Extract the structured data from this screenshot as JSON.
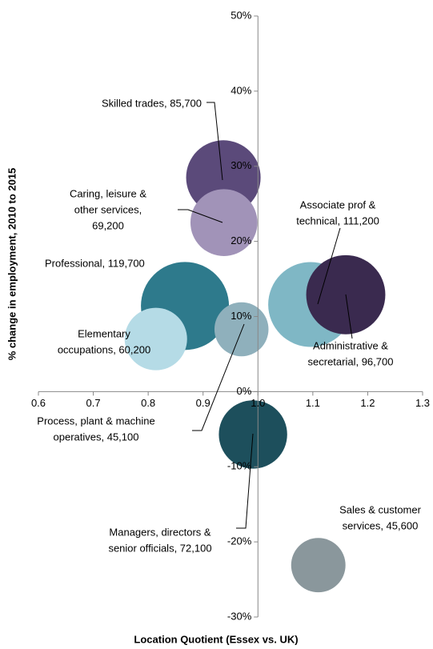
{
  "chart_data": {
    "type": "bubble",
    "x_label": "Location Quotient (Essex vs. UK)",
    "y_label": "% change in employment, 2010 to 2015",
    "xlim": [
      0.6,
      1.3
    ],
    "xticks": [
      0.6,
      0.7,
      0.8,
      0.9,
      {
        "value": 1.0,
        "label": "1.0"
      },
      1.1,
      1.2,
      1.3
    ],
    "ylim": [
      -30,
      50
    ],
    "yticks": [
      {
        "value": -30,
        "label": "-30%"
      },
      {
        "value": -20,
        "label": "-20%"
      },
      {
        "value": -10,
        "label": "-10%"
      },
      {
        "value": 0,
        "label": "0%"
      },
      {
        "value": 10,
        "label": "10%"
      },
      {
        "value": 20,
        "label": "20%"
      },
      {
        "value": 30,
        "label": "30%"
      },
      {
        "value": 40,
        "label": "40%"
      },
      {
        "value": 50,
        "label": "50%"
      }
    ],
    "points": [
      {
        "label": [
          "Skilled trades, 85,700"
        ],
        "x": 0.937,
        "y": 28.5,
        "size": 85700,
        "color": "#5b4a7a"
      },
      {
        "label": [
          "Caring, leisure &",
          "other services,",
          "69,200"
        ],
        "x": 0.938,
        "y": 22.5,
        "size": 69200,
        "color": "#a193b8"
      },
      {
        "label": [
          "Professional, 119,700"
        ],
        "x": 0.867,
        "y": 11.4,
        "size": 119700,
        "color": "#2e7a8c"
      },
      {
        "label": [
          "Elementary",
          "occupations, 60,200"
        ],
        "x": 0.814,
        "y": 7.0,
        "size": 60200,
        "color": "#b5dbe6"
      },
      {
        "label": [
          "Process, plant & machine",
          "operatives, 45,100"
        ],
        "x": 0.97,
        "y": 8.3,
        "size": 45100,
        "color": "#8fb0bc"
      },
      {
        "label": [
          "Associate prof &",
          "technical, 111,200"
        ],
        "x": 1.096,
        "y": 11.6,
        "size": 111200,
        "color": "#7fb7c5"
      },
      {
        "label": [
          "Administrative &",
          "secretarial, 96,700"
        ],
        "x": 1.16,
        "y": 12.9,
        "size": 96700,
        "color": "#3a2a4f"
      },
      {
        "label": [
          "Managers, directors &",
          "senior officials, 72,100"
        ],
        "x": 0.991,
        "y": -5.7,
        "size": 72100,
        "color": "#1d4f5c"
      },
      {
        "label": [
          "Sales & customer",
          "services, 45,600"
        ],
        "x": 1.11,
        "y": -23.1,
        "size": 45600,
        "color": "#8a979c"
      }
    ]
  }
}
